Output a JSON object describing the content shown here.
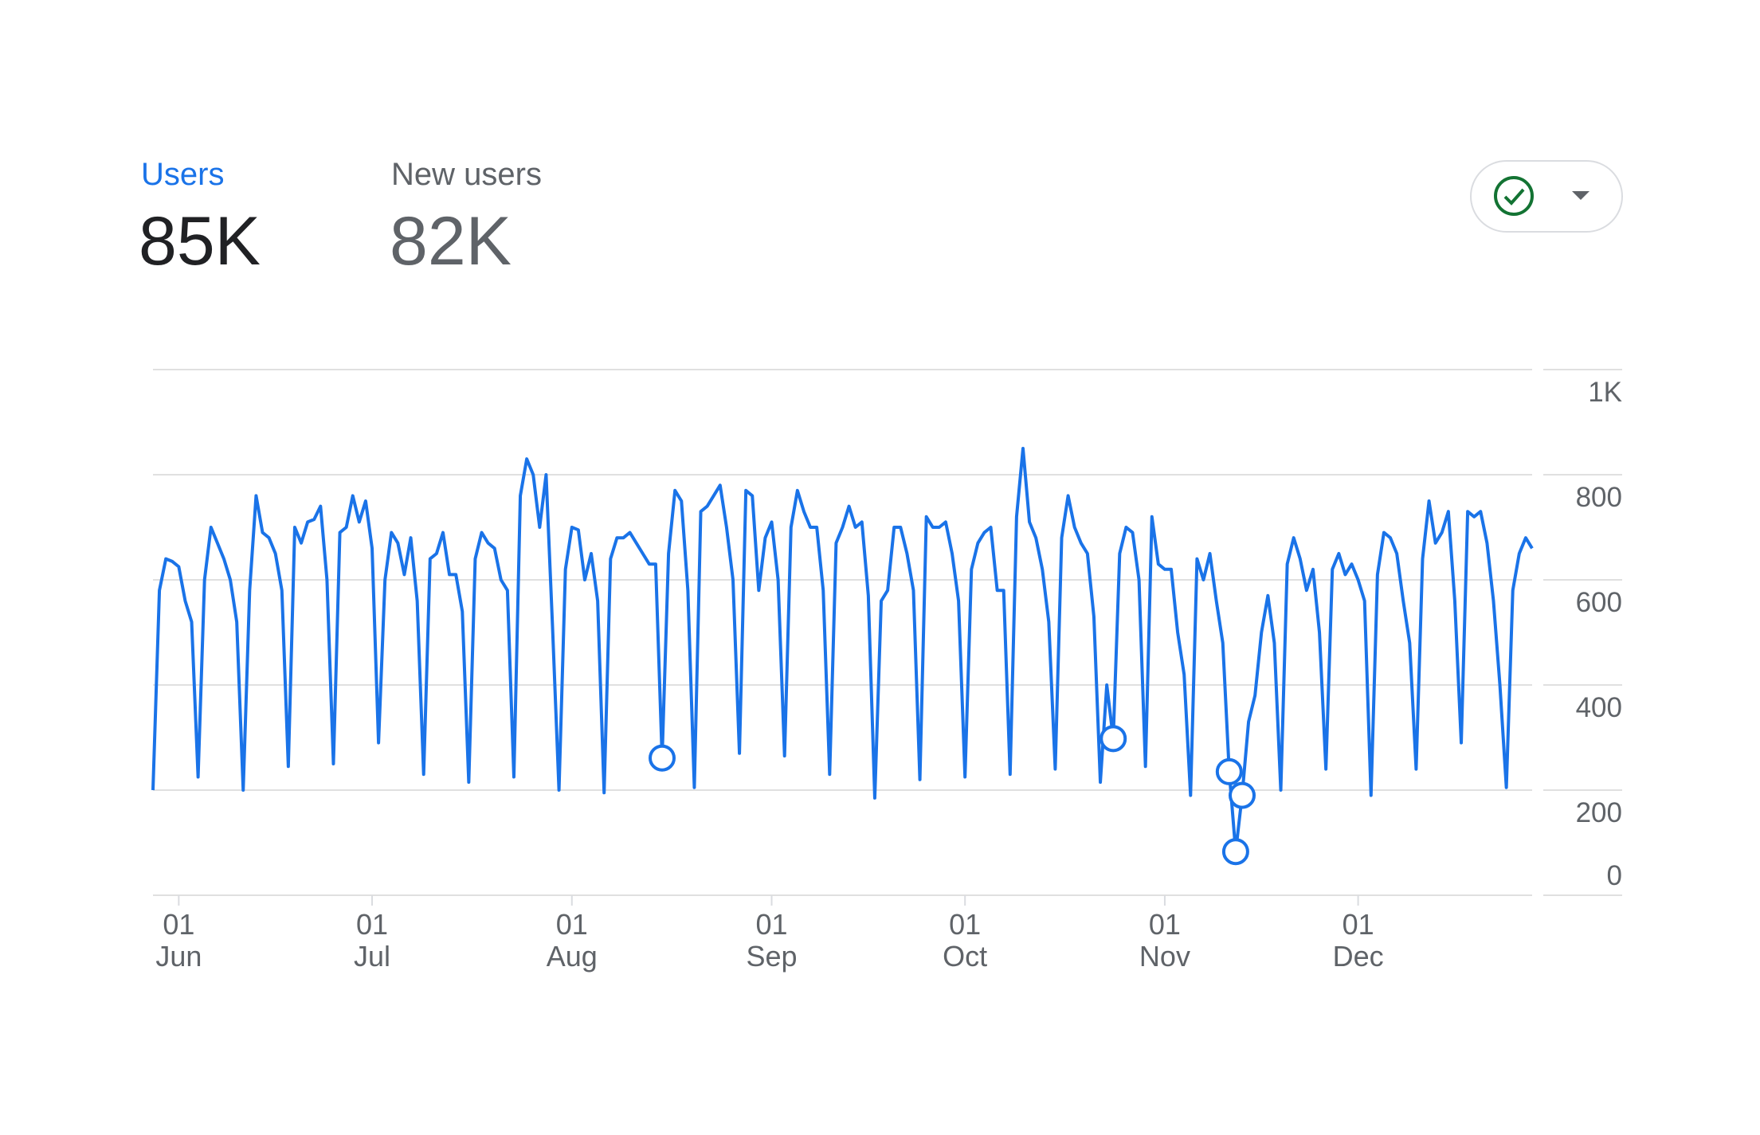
{
  "metrics": [
    {
      "label": "Users",
      "value": "85K"
    },
    {
      "label": "New users",
      "value": "82K"
    }
  ],
  "chart_data": {
    "type": "line",
    "series": [
      {
        "name": "Users",
        "color": "#1a73e8",
        "values": [
          200,
          580,
          640,
          635,
          625,
          560,
          520,
          225,
          600,
          700,
          670,
          640,
          600,
          520,
          200,
          580,
          760,
          690,
          680,
          650,
          580,
          245,
          700,
          670,
          710,
          715,
          740,
          600,
          250,
          690,
          700,
          760,
          710,
          750,
          660,
          290,
          600,
          690,
          670,
          610,
          680,
          560,
          230,
          640,
          650,
          690,
          610,
          610,
          540,
          215,
          640,
          690,
          670,
          660,
          600,
          580,
          225,
          760,
          830,
          800,
          700,
          800,
          510,
          200,
          620,
          700,
          695,
          600,
          650,
          560,
          195,
          640,
          680,
          680,
          690,
          670,
          650,
          630,
          630,
          261,
          650,
          770,
          750,
          580,
          205,
          730,
          740,
          760,
          780,
          700,
          600,
          270,
          770,
          760,
          580,
          680,
          710,
          600,
          265,
          700,
          770,
          730,
          700,
          700,
          580,
          230,
          670,
          700,
          740,
          700,
          710,
          570,
          185,
          560,
          580,
          700,
          700,
          650,
          580,
          220,
          720,
          700,
          700,
          710,
          650,
          560,
          225,
          620,
          670,
          690,
          700,
          580,
          580,
          230,
          720,
          850,
          710,
          680,
          620,
          520,
          240,
          680,
          760,
          700,
          670,
          650,
          530,
          215,
          400,
          298,
          650,
          700,
          690,
          600,
          245,
          720,
          630,
          620,
          620,
          500,
          420,
          190,
          640,
          600,
          650,
          560,
          480,
          235,
          83,
          190,
          330,
          380,
          500,
          570,
          480,
          200,
          630,
          680,
          640,
          580,
          620,
          500,
          240,
          620,
          650,
          610,
          630,
          600,
          560,
          190,
          610,
          690,
          680,
          650,
          560,
          480,
          240,
          640,
          750,
          670,
          690,
          730,
          560,
          290,
          730,
          720,
          730,
          670,
          560,
          400,
          205,
          580,
          650,
          680,
          660
        ]
      }
    ],
    "anomalies": [
      79,
      149,
      167,
      168,
      169
    ],
    "xlim": [
      0,
      214
    ],
    "xticks": [
      {
        "value": 4,
        "day": "01",
        "month": "Jun"
      },
      {
        "value": 34,
        "day": "01",
        "month": "Jul"
      },
      {
        "value": 65,
        "day": "01",
        "month": "Aug"
      },
      {
        "value": 96,
        "day": "01",
        "month": "Sep"
      },
      {
        "value": 126,
        "day": "01",
        "month": "Oct"
      },
      {
        "value": 157,
        "day": "01",
        "month": "Nov"
      },
      {
        "value": 187,
        "day": "01",
        "month": "Dec"
      }
    ],
    "ylim": [
      0,
      1000
    ],
    "yticks": [
      0,
      200,
      400,
      600,
      800,
      {
        "value": 1000,
        "label": "1K"
      }
    ],
    "grid": true
  }
}
